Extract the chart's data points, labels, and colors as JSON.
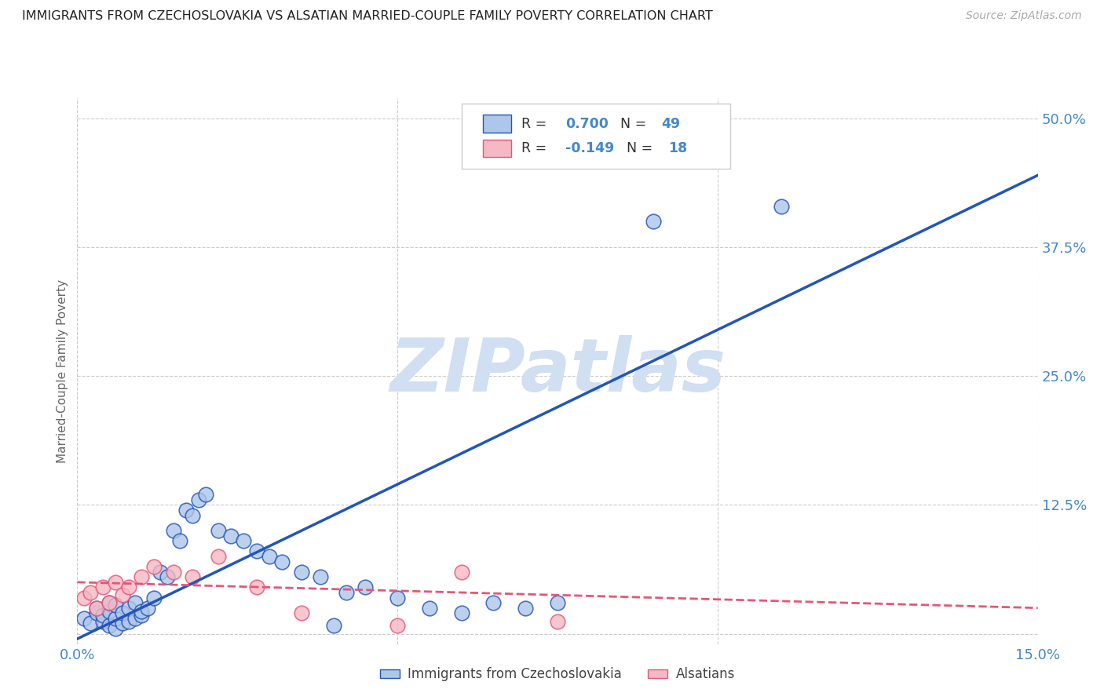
{
  "title": "IMMIGRANTS FROM CZECHOSLOVAKIA VS ALSATIAN MARRIED-COUPLE FAMILY POVERTY CORRELATION CHART",
  "source": "Source: ZipAtlas.com",
  "ylabel_label": "Married-Couple Family Poverty",
  "watermark": "ZIPatlas",
  "xlim": [
    0.0,
    0.15
  ],
  "ylim": [
    -0.01,
    0.52
  ],
  "xticks": [
    0.0,
    0.05,
    0.1,
    0.15
  ],
  "xtick_labels": [
    "0.0%",
    "",
    "",
    "15.0%"
  ],
  "yticks": [
    0.0,
    0.125,
    0.25,
    0.375,
    0.5
  ],
  "ytick_labels": [
    "",
    "12.5%",
    "25.0%",
    "37.5%",
    "50.0%"
  ],
  "blue_R": 0.7,
  "blue_N": 49,
  "pink_R": -0.149,
  "pink_N": 18,
  "blue_color": "#aec6e8",
  "pink_color": "#f5b8c4",
  "blue_line_color": "#2255bb",
  "pink_line_color": "#e85575",
  "axis_label_color": "#666666",
  "tick_color": "#4488cc",
  "grid_color": "#cccccc",
  "watermark_color": "#d0dff2",
  "blue_scatter_x": [
    0.001,
    0.002,
    0.003,
    0.003,
    0.004,
    0.004,
    0.005,
    0.005,
    0.005,
    0.006,
    0.006,
    0.006,
    0.007,
    0.007,
    0.008,
    0.008,
    0.009,
    0.009,
    0.01,
    0.01,
    0.011,
    0.012,
    0.013,
    0.014,
    0.015,
    0.016,
    0.017,
    0.018,
    0.019,
    0.02,
    0.022,
    0.024,
    0.026,
    0.028,
    0.03,
    0.032,
    0.035,
    0.038,
    0.04,
    0.042,
    0.045,
    0.05,
    0.055,
    0.06,
    0.065,
    0.07,
    0.075,
    0.09,
    0.11
  ],
  "blue_scatter_y": [
    0.015,
    0.01,
    0.02,
    0.025,
    0.012,
    0.018,
    0.008,
    0.022,
    0.03,
    0.005,
    0.015,
    0.028,
    0.01,
    0.02,
    0.012,
    0.025,
    0.015,
    0.03,
    0.018,
    0.022,
    0.025,
    0.035,
    0.06,
    0.055,
    0.1,
    0.09,
    0.12,
    0.115,
    0.13,
    0.135,
    0.1,
    0.095,
    0.09,
    0.08,
    0.075,
    0.07,
    0.06,
    0.055,
    0.008,
    0.04,
    0.045,
    0.035,
    0.025,
    0.02,
    0.03,
    0.025,
    0.03,
    0.4,
    0.415
  ],
  "pink_scatter_x": [
    0.001,
    0.002,
    0.003,
    0.004,
    0.005,
    0.006,
    0.007,
    0.008,
    0.01,
    0.012,
    0.015,
    0.018,
    0.022,
    0.028,
    0.035,
    0.05,
    0.06,
    0.075
  ],
  "pink_scatter_y": [
    0.035,
    0.04,
    0.025,
    0.045,
    0.03,
    0.05,
    0.038,
    0.045,
    0.055,
    0.065,
    0.06,
    0.055,
    0.075,
    0.045,
    0.02,
    0.008,
    0.06,
    0.012
  ],
  "blue_line_x": [
    0.0,
    0.15
  ],
  "blue_line_y": [
    -0.005,
    0.445
  ],
  "pink_line_x": [
    0.0,
    0.15
  ],
  "pink_line_y": [
    0.05,
    0.025
  ]
}
